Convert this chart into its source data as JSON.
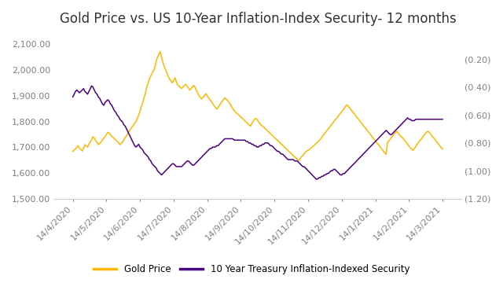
{
  "title": "Gold Price vs. US 10-Year Inflation-Index Security- 12 months",
  "gold_color": "#FFB800",
  "tips_color": "#4B0082",
  "left_ylim": [
    1500,
    2150
  ],
  "right_ylim": [
    -1.2,
    0.0
  ],
  "left_yticks": [
    1500.0,
    1600.0,
    1700.0,
    1800.0,
    1900.0,
    2000.0,
    2100.0
  ],
  "right_yticks": [
    -1.2,
    -1.0,
    -0.8,
    -0.6,
    -0.4,
    -0.2,
    0.0
  ],
  "right_yticklabels": [
    "(1.20)",
    "(1.00)",
    "(0.80)",
    "(0.60)",
    "(0.40)",
    "(0.20)",
    ""
  ],
  "xtick_labels": [
    "14/4/2020",
    "14/5/2020",
    "14/6/2020",
    "14/7/2020",
    "14/8/2020",
    "14/9/2020",
    "14/10/2020",
    "14/11/2020",
    "14/12/2020",
    "14/1/2021",
    "14/2/2021",
    "14/3/2021"
  ],
  "legend_labels": [
    "Gold Price",
    "10 Year Treasury Inflation-Indexed Security"
  ],
  "background_color": "#FFFFFF",
  "title_fontsize": 12,
  "tick_fontsize": 8,
  "legend_fontsize": 8.5,
  "gold_data": [
    1683,
    1689,
    1693,
    1700,
    1706,
    1695,
    1692,
    1685,
    1696,
    1710,
    1705,
    1700,
    1713,
    1720,
    1730,
    1741,
    1735,
    1725,
    1718,
    1710,
    1715,
    1720,
    1728,
    1735,
    1740,
    1750,
    1758,
    1755,
    1748,
    1742,
    1738,
    1732,
    1728,
    1722,
    1718,
    1710,
    1715,
    1720,
    1730,
    1738,
    1745,
    1755,
    1763,
    1770,
    1778,
    1785,
    1793,
    1800,
    1812,
    1825,
    1840,
    1858,
    1872,
    1892,
    1910,
    1935,
    1950,
    1965,
    1978,
    1988,
    1998,
    2010,
    2035,
    2050,
    2060,
    2072,
    2050,
    2030,
    2015,
    2000,
    1988,
    1975,
    1965,
    1958,
    1950,
    1960,
    1970,
    1955,
    1942,
    1938,
    1932,
    1928,
    1935,
    1940,
    1945,
    1938,
    1930,
    1922,
    1928,
    1935,
    1940,
    1932,
    1920,
    1910,
    1900,
    1892,
    1888,
    1895,
    1902,
    1908,
    1900,
    1892,
    1885,
    1878,
    1870,
    1862,
    1855,
    1848,
    1855,
    1862,
    1870,
    1878,
    1885,
    1892,
    1888,
    1882,
    1875,
    1868,
    1858,
    1850,
    1842,
    1838,
    1832,
    1828,
    1822,
    1818,
    1812,
    1808,
    1802,
    1798,
    1792,
    1788,
    1782,
    1790,
    1800,
    1808,
    1812,
    1808,
    1800,
    1792,
    1788,
    1782,
    1778,
    1772,
    1768,
    1762,
    1758,
    1752,
    1748,
    1742,
    1738,
    1732,
    1728,
    1722,
    1718,
    1712,
    1708,
    1702,
    1698,
    1692,
    1688,
    1682,
    1678,
    1672,
    1668,
    1662,
    1658,
    1652,
    1648,
    1655,
    1662,
    1668,
    1675,
    1680,
    1685,
    1688,
    1692,
    1696,
    1700,
    1705,
    1710,
    1715,
    1720,
    1725,
    1730,
    1738,
    1745,
    1752,
    1758,
    1765,
    1772,
    1778,
    1785,
    1792,
    1798,
    1805,
    1812,
    1818,
    1825,
    1832,
    1838,
    1845,
    1852,
    1860,
    1865,
    1858,
    1852,
    1845,
    1838,
    1832,
    1825,
    1818,
    1812,
    1805,
    1798,
    1792,
    1785,
    1778,
    1772,
    1765,
    1758,
    1752,
    1745,
    1738,
    1732,
    1725,
    1718,
    1712,
    1705,
    1698,
    1692,
    1685,
    1678,
    1672,
    1718,
    1725,
    1730,
    1738,
    1745,
    1752,
    1758,
    1762,
    1755,
    1748,
    1742,
    1738,
    1732,
    1725,
    1718,
    1712,
    1705,
    1698,
    1692,
    1688,
    1695,
    1702,
    1710,
    1718,
    1725,
    1730,
    1738,
    1745,
    1752,
    1758,
    1762,
    1758,
    1752,
    1745,
    1738,
    1732,
    1725,
    1718,
    1712,
    1705,
    1698,
    1693
  ],
  "tips_data": [
    -0.47,
    -0.45,
    -0.43,
    -0.42,
    -0.43,
    -0.44,
    -0.43,
    -0.42,
    -0.41,
    -0.43,
    -0.44,
    -0.45,
    -0.43,
    -0.41,
    -0.39,
    -0.4,
    -0.42,
    -0.44,
    -0.45,
    -0.47,
    -0.48,
    -0.5,
    -0.52,
    -0.53,
    -0.51,
    -0.5,
    -0.49,
    -0.5,
    -0.52,
    -0.53,
    -0.55,
    -0.57,
    -0.58,
    -0.6,
    -0.61,
    -0.63,
    -0.64,
    -0.65,
    -0.67,
    -0.68,
    -0.7,
    -0.72,
    -0.74,
    -0.76,
    -0.78,
    -0.8,
    -0.82,
    -0.83,
    -0.82,
    -0.81,
    -0.83,
    -0.84,
    -0.85,
    -0.87,
    -0.88,
    -0.89,
    -0.9,
    -0.92,
    -0.93,
    -0.95,
    -0.96,
    -0.97,
    -0.98,
    -1.0,
    -1.01,
    -1.02,
    -1.03,
    -1.02,
    -1.01,
    -1.0,
    -0.99,
    -0.98,
    -0.97,
    -0.96,
    -0.95,
    -0.95,
    -0.96,
    -0.97,
    -0.97,
    -0.97,
    -0.97,
    -0.97,
    -0.96,
    -0.95,
    -0.94,
    -0.93,
    -0.93,
    -0.94,
    -0.95,
    -0.96,
    -0.96,
    -0.95,
    -0.94,
    -0.93,
    -0.92,
    -0.91,
    -0.9,
    -0.89,
    -0.88,
    -0.87,
    -0.86,
    -0.85,
    -0.84,
    -0.84,
    -0.83,
    -0.83,
    -0.83,
    -0.82,
    -0.82,
    -0.81,
    -0.8,
    -0.79,
    -0.78,
    -0.77,
    -0.77,
    -0.77,
    -0.77,
    -0.77,
    -0.77,
    -0.77,
    -0.78,
    -0.78,
    -0.78,
    -0.78,
    -0.78,
    -0.78,
    -0.78,
    -0.78,
    -0.78,
    -0.79,
    -0.79,
    -0.8,
    -0.8,
    -0.81,
    -0.81,
    -0.82,
    -0.82,
    -0.83,
    -0.83,
    -0.82,
    -0.82,
    -0.81,
    -0.81,
    -0.8,
    -0.8,
    -0.8,
    -0.81,
    -0.82,
    -0.82,
    -0.83,
    -0.84,
    -0.85,
    -0.86,
    -0.86,
    -0.87,
    -0.88,
    -0.88,
    -0.89,
    -0.9,
    -0.91,
    -0.92,
    -0.92,
    -0.92,
    -0.92,
    -0.92,
    -0.93,
    -0.93,
    -0.93,
    -0.94,
    -0.95,
    -0.96,
    -0.97,
    -0.97,
    -0.98,
    -0.99,
    -1.0,
    -1.01,
    -1.02,
    -1.03,
    -1.04,
    -1.05,
    -1.06,
    -1.06,
    -1.05,
    -1.05,
    -1.04,
    -1.04,
    -1.03,
    -1.03,
    -1.02,
    -1.02,
    -1.01,
    -1.0,
    -1.0,
    -0.99,
    -0.99,
    -1.0,
    -1.01,
    -1.02,
    -1.03,
    -1.03,
    -1.02,
    -1.02,
    -1.01,
    -1.0,
    -0.99,
    -0.98,
    -0.97,
    -0.96,
    -0.95,
    -0.94,
    -0.93,
    -0.92,
    -0.91,
    -0.9,
    -0.89,
    -0.88,
    -0.87,
    -0.86,
    -0.85,
    -0.84,
    -0.83,
    -0.82,
    -0.81,
    -0.8,
    -0.79,
    -0.78,
    -0.77,
    -0.76,
    -0.75,
    -0.74,
    -0.73,
    -0.72,
    -0.71,
    -0.72,
    -0.73,
    -0.74,
    -0.74,
    -0.73,
    -0.72,
    -0.71,
    -0.7,
    -0.69,
    -0.68,
    -0.67,
    -0.66,
    -0.65,
    -0.64,
    -0.63,
    -0.62,
    -0.63,
    -0.63,
    -0.64,
    -0.64,
    -0.64,
    -0.63,
    -0.63,
    -0.63,
    -0.63,
    -0.63,
    -0.63,
    -0.63,
    -0.63,
    -0.63,
    -0.63,
    -0.63,
    -0.63,
    -0.63,
    -0.63,
    -0.63,
    -0.63,
    -0.63,
    -0.63,
    -0.63,
    -0.63,
    -0.63
  ]
}
